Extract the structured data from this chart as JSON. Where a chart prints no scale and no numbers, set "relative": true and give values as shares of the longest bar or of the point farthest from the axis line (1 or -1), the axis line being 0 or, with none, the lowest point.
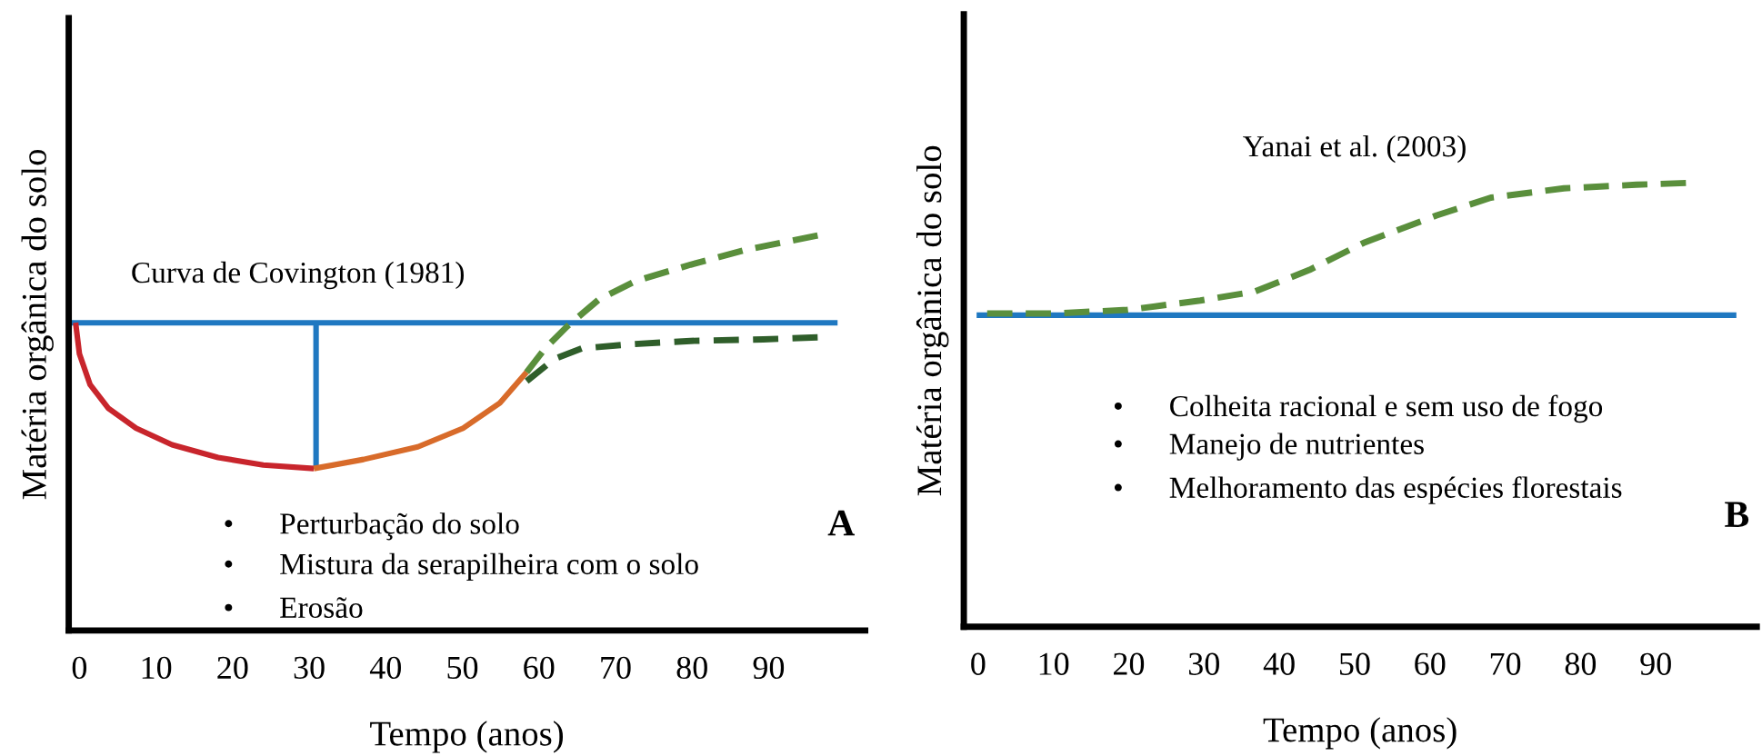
{
  "chart_data": [
    {
      "type": "line",
      "relative": true,
      "xlabel": "Tempo (anos)",
      "ylabel": "Matéria orgânica do solo",
      "xlim": [
        -1.4,
        102.6
      ],
      "xticks": [
        0,
        10,
        20,
        30,
        40,
        50,
        60,
        70,
        80,
        90
      ],
      "series": [
        {
          "color": "#1f78c1",
          "line_style": "solid",
          "x": [
            -1.4,
            99
          ],
          "values": [
            0.779,
            0.779
          ]
        },
        {
          "color": "#1f78c1",
          "line_style": "solid",
          "x": [
            30.9,
            30.9
          ],
          "values": [
            0.779,
            0.41
          ]
        },
        {
          "color": "#c8252c",
          "line_style": "solid",
          "x": [
            -0.5,
            0,
            1.4,
            3.8,
            7.4,
            12.1,
            18.1,
            24,
            30.6
          ],
          "values": [
            0.779,
            0.7,
            0.622,
            0.562,
            0.512,
            0.47,
            0.438,
            0.419,
            0.41
          ]
        },
        {
          "color": "#d86b2a",
          "line_style": "solid",
          "x": [
            30.6,
            37.1,
            44.2,
            50.1,
            54.9,
            58.4
          ],
          "values": [
            0.41,
            0.433,
            0.465,
            0.512,
            0.576,
            0.654
          ]
        },
        {
          "color": "#5a8f3c",
          "line_style": "dashed",
          "x": [
            58.4,
            60.8,
            63.7,
            67.9,
            72.7,
            79.8,
            86.9,
            96.4
          ],
          "values": [
            0.654,
            0.714,
            0.77,
            0.839,
            0.885,
            0.926,
            0.963,
            1.0
          ]
        },
        {
          "color": "#2f5e2a",
          "line_style": "dashed",
          "x": [
            58.4,
            62,
            65.6,
            71.5,
            79.8,
            89.3,
            96.4
          ],
          "values": [
            0.631,
            0.687,
            0.714,
            0.724,
            0.733,
            0.737,
            0.742
          ]
        }
      ],
      "annotations": [
        "Curva de Covington (1981)",
        "•      Perturbação do solo",
        "•      Mistura da serapilheira com o solo",
        "•      Erosão",
        "A"
      ]
    },
    {
      "type": "line",
      "relative": true,
      "xlabel": "Tempo (anos)",
      "ylabel": "Matéria orgânica do solo",
      "xlim": [
        -1.9,
        103.4
      ],
      "xticks": [
        0,
        10,
        20,
        30,
        40,
        50,
        60,
        70,
        80,
        90
      ],
      "series": [
        {
          "color": "#1f78c1",
          "line_style": "solid",
          "x": [
            -0.2,
            100.7
          ],
          "values": [
            0.702,
            0.702
          ]
        },
        {
          "color": "#5a8f3c",
          "line_style": "dashed",
          "x": [
            1.2,
            10.1,
            19.8,
            29.5,
            36.7,
            44,
            51.2,
            60.9,
            68.1,
            77.8,
            87.4,
            94
          ],
          "values": [
            0.706,
            0.706,
            0.714,
            0.735,
            0.755,
            0.804,
            0.865,
            0.927,
            0.967,
            0.988,
            0.996,
            1.0
          ]
        }
      ],
      "annotations": [
        "Yanai et al. (2003)",
        "•      Colheita racional e sem uso de fogo",
        "•      Manejo de nutrientes",
        "•      Melhoramento das espécies florestais",
        "B"
      ]
    }
  ]
}
